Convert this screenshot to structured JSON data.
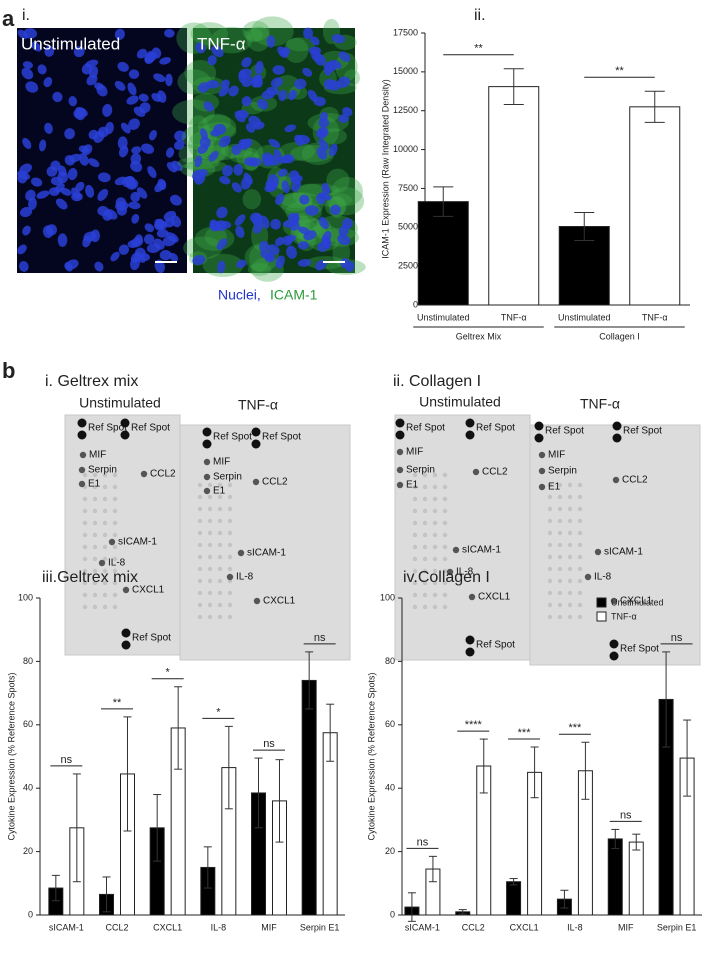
{
  "figure": {
    "panel_a": "a",
    "panel_b": "b",
    "a_i": "i.",
    "micro_left": "Unstimulated",
    "micro_right": "TNF-α",
    "caption_nuclei": "Nuclei,",
    "caption_icam": "ICAM-1",
    "blots": [
      {
        "title": "i. Geltrex mix",
        "membranes": [
          {
            "title": "Unstimulated",
            "labels": [
              "Ref Spot",
              "Ref Spot",
              "MIF",
              "Serpin",
              "E1",
              "CCL2",
              "sICAM-1",
              "IL-8",
              "CXCL1",
              "Ref Spot"
            ]
          },
          {
            "title": "TNF-α",
            "labels": [
              "Ref Spot",
              "Ref Spot",
              "MIF",
              "Serpin",
              "E1",
              "CCL2",
              "sICAM-1",
              "IL-8",
              "CXCL1"
            ]
          }
        ]
      },
      {
        "title": "ii. Collagen I",
        "membranes": [
          {
            "title": "Unstimulated",
            "labels": [
              "Ref Spot",
              "Ref Spot",
              "MIF",
              "Serpin",
              "E1",
              "CCL2",
              "sICAM-1",
              "IL-8",
              "CXCL1",
              "Ref Spot"
            ]
          },
          {
            "title": "TNF-α",
            "labels": [
              "Ref Spot",
              "Ref Spot",
              "MIF",
              "Serpin",
              "E1",
              "CCL2",
              "sICAM-1",
              "IL-8",
              "CXCL1",
              "Ref Spot"
            ]
          }
        ]
      }
    ]
  },
  "chart_data": [
    {
      "type": "bar",
      "title": "ii.",
      "y_label": "ICAM-1 Expression (Raw Integrated Density)",
      "categories": [
        "Unstimulated",
        "TNF-α",
        "Unstimulated",
        "TNF-α"
      ],
      "values": [
        6650,
        14050,
        5050,
        12750
      ],
      "errors": [
        950,
        1150,
        900,
        1000
      ],
      "colors": [
        "#000000",
        "#ffffff",
        "#000000",
        "#ffffff"
      ],
      "groups": [
        "Geltrex Mix",
        "Collagen I"
      ],
      "significance": [
        "**",
        "**"
      ],
      "ylim": [
        0,
        17500
      ],
      "yticks": [
        0,
        2500,
        5000,
        7500,
        10000,
        12500,
        15000,
        17500
      ]
    },
    {
      "type": "grouped_bar",
      "title": "iii.Geltrex mix",
      "y_label": "Cytokine Expression (% Reference Spots)",
      "categories": [
        "sICAM-1",
        "CCL2",
        "CXCL1",
        "IL-8",
        "MIF",
        "Serpin E1"
      ],
      "series": [
        {
          "name": "Unstimulated",
          "color": "#000000",
          "values": [
            8.5,
            6.5,
            27.5,
            15,
            38.5,
            74
          ],
          "errors": [
            4,
            5.5,
            10.5,
            6.5,
            11,
            9
          ]
        },
        {
          "name": "TNF-α",
          "color": "#ffffff",
          "values": [
            27.5,
            44.5,
            59,
            46.5,
            36,
            57.5
          ],
          "errors": [
            17,
            18,
            13,
            13,
            13,
            9
          ]
        }
      ],
      "significance": [
        "ns",
        "**",
        "*",
        "*",
        "ns",
        "ns"
      ],
      "ylim": [
        0,
        100
      ],
      "yticks": [
        0,
        20,
        40,
        60,
        80,
        100
      ],
      "legend": false
    },
    {
      "type": "grouped_bar",
      "title": "iv.Collagen I",
      "y_label": "Cytokine Expression (% Reference Spots)",
      "categories": [
        "sICAM-1",
        "CCL2",
        "CXCL1",
        "IL-8",
        "MIF",
        "Serpin E1"
      ],
      "series": [
        {
          "name": "Unstimulated",
          "color": "#000000",
          "values": [
            2.5,
            1,
            10.5,
            5,
            24,
            68
          ],
          "errors": [
            4.5,
            0.7,
            1,
            2.8,
            3,
            15
          ]
        },
        {
          "name": "TNF-α",
          "color": "#ffffff",
          "values": [
            14.5,
            47,
            45,
            45.5,
            23,
            49.5
          ],
          "errors": [
            4,
            8.5,
            8,
            9,
            2.5,
            12
          ]
        }
      ],
      "significance": [
        "ns",
        "****",
        "***",
        "***",
        "ns",
        "ns"
      ],
      "ylim": [
        0,
        100
      ],
      "yticks": [
        0,
        20,
        40,
        60,
        80,
        100
      ],
      "legend": "top-right"
    }
  ]
}
